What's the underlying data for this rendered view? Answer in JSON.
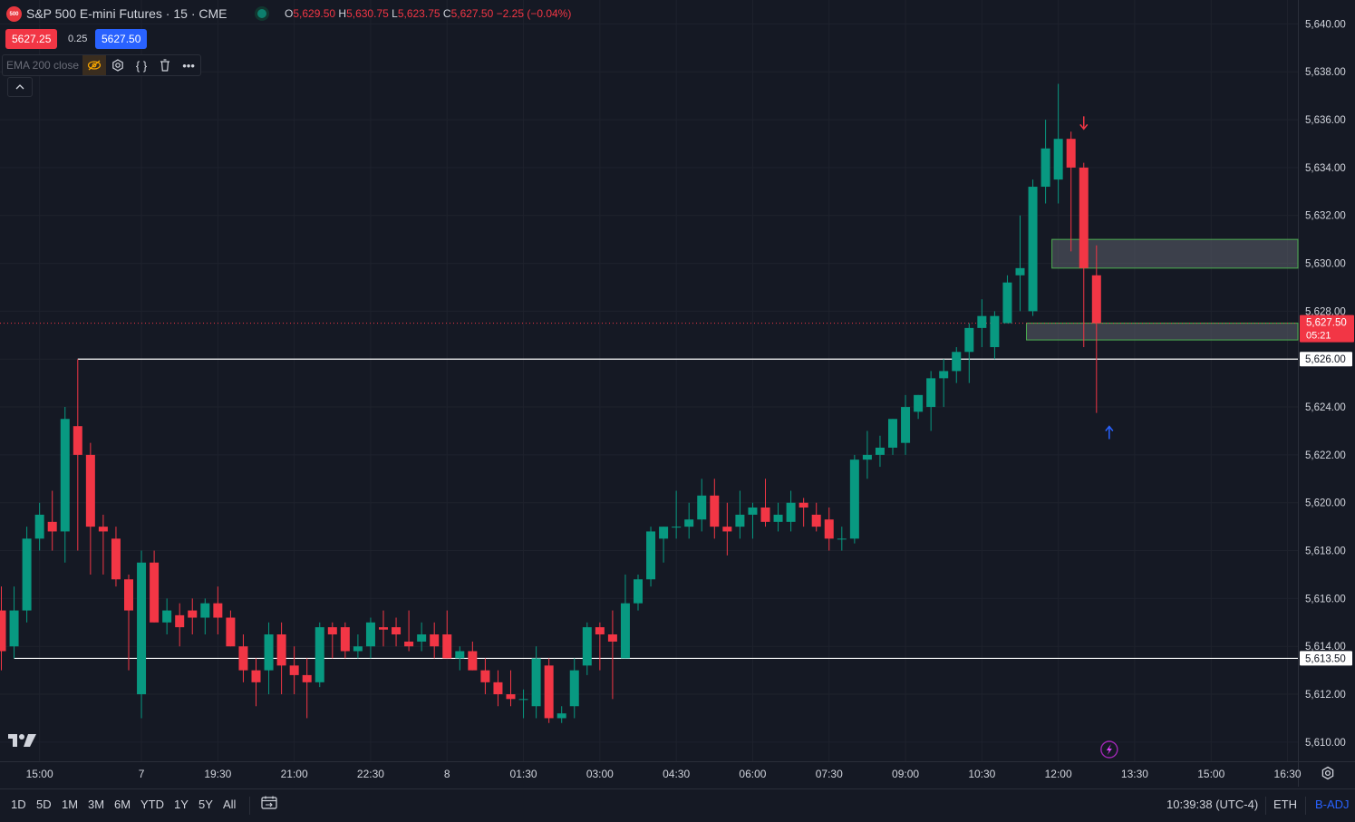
{
  "header": {
    "symbol_badge": "500",
    "title": "S&P 500 E-mini Futures · 15 · CME",
    "ohlc": [
      {
        "k": "O",
        "v": "5,629.50"
      },
      {
        "k": "H",
        "v": "5,630.75"
      },
      {
        "k": "L",
        "v": "5,623.75"
      },
      {
        "k": "C",
        "v": "5,627.50"
      }
    ],
    "change": "−2.25 (−0.04%)",
    "sell_price": "5627.25",
    "spread": "0.25",
    "buy_price": "5627.50"
  },
  "indicator": {
    "label": "EMA 200 close",
    "icons": [
      "eye-off-icon",
      "settings-icon",
      "source-code-icon",
      "trash-icon",
      "more-icon"
    ]
  },
  "colors": {
    "up": "#089981",
    "down": "#f23645",
    "bg": "#151924",
    "grid": "#1e222d",
    "zone_fill": "#5d606b",
    "zone_border": "#4caf50",
    "hline": "#ffffff",
    "buy": "#2962ff"
  },
  "chart_data": {
    "type": "candlestick",
    "timeframe": "15",
    "ylim": [
      5609.2,
      5641.0
    ],
    "y_ticks": [
      "5,610.00",
      "5,612.00",
      "5,614.00",
      "5,616.00",
      "5,618.00",
      "5,620.00",
      "5,622.00",
      "5,624.00",
      "5,626.00",
      "5,628.00",
      "5,630.00",
      "5,632.00",
      "5,634.00",
      "5,636.00",
      "5,638.00",
      "5,640.00"
    ],
    "y_tick_values": [
      5610,
      5612,
      5614,
      5616,
      5618,
      5620,
      5622,
      5624,
      5626,
      5628,
      5630,
      5632,
      5634,
      5636,
      5638,
      5640
    ],
    "x_tick_labels": [
      "15:00",
      "7",
      "19:30",
      "21:00",
      "22:30",
      "8",
      "01:30",
      "03:00",
      "04:30",
      "06:00",
      "07:30",
      "09:00",
      "10:30",
      "12:00",
      "13:30",
      "15:00",
      "16:30"
    ],
    "x_tick_bar_index": [
      3,
      11,
      17,
      23,
      29,
      35,
      41,
      47,
      53,
      59,
      65,
      71,
      77,
      83,
      89,
      95,
      101
    ],
    "candles": [
      [
        5615.5,
        5616.5,
        5613.0,
        5613.8
      ],
      [
        5614.0,
        5616.5,
        5613.5,
        5615.5
      ],
      [
        5615.5,
        5619.0,
        5615.0,
        5618.5
      ],
      [
        5618.5,
        5620.0,
        5618.0,
        5619.5
      ],
      [
        5619.2,
        5620.5,
        5618.0,
        5618.8
      ],
      [
        5618.8,
        5624.0,
        5617.5,
        5623.5
      ],
      [
        5623.2,
        5626.0,
        5618.0,
        5622.0
      ],
      [
        5622.0,
        5622.5,
        5617.0,
        5619.0
      ],
      [
        5619.0,
        5619.5,
        5617.0,
        5618.8
      ],
      [
        5618.5,
        5619.0,
        5616.5,
        5616.8
      ],
      [
        5616.8,
        5617.0,
        5613.0,
        5615.5
      ],
      [
        5612.0,
        5618.0,
        5611.0,
        5617.5
      ],
      [
        5617.5,
        5618.0,
        5615.0,
        5615.0
      ],
      [
        5615.0,
        5616.0,
        5614.5,
        5615.5
      ],
      [
        5615.3,
        5615.8,
        5614.0,
        5614.8
      ],
      [
        5615.5,
        5616.0,
        5614.5,
        5615.2
      ],
      [
        5615.2,
        5616.0,
        5614.5,
        5615.8
      ],
      [
        5615.8,
        5616.5,
        5614.5,
        5615.2
      ],
      [
        5615.2,
        5615.5,
        5614.0,
        5614.0
      ],
      [
        5614.0,
        5614.5,
        5612.5,
        5613.0
      ],
      [
        5613.0,
        5613.5,
        5611.5,
        5612.5
      ],
      [
        5613.0,
        5615.0,
        5612.0,
        5614.5
      ],
      [
        5614.5,
        5615.0,
        5612.0,
        5613.2
      ],
      [
        5613.2,
        5614.0,
        5612.0,
        5612.8
      ],
      [
        5612.8,
        5613.5,
        5611.0,
        5612.5
      ],
      [
        5612.5,
        5615.0,
        5612.3,
        5614.8
      ],
      [
        5614.8,
        5615.0,
        5613.5,
        5614.5
      ],
      [
        5614.8,
        5615.0,
        5613.5,
        5613.8
      ],
      [
        5613.8,
        5614.5,
        5613.5,
        5614.0
      ],
      [
        5614.0,
        5615.2,
        5613.5,
        5615.0
      ],
      [
        5614.8,
        5615.5,
        5614.0,
        5614.7
      ],
      [
        5614.8,
        5615.2,
        5614.0,
        5614.5
      ],
      [
        5614.2,
        5615.5,
        5613.8,
        5614.0
      ],
      [
        5614.2,
        5615.0,
        5613.8,
        5614.5
      ],
      [
        5614.5,
        5615.0,
        5613.5,
        5614.0
      ],
      [
        5614.5,
        5615.5,
        5613.5,
        5613.5
      ],
      [
        5613.5,
        5614.0,
        5613.0,
        5613.8
      ],
      [
        5613.8,
        5614.2,
        5613.0,
        5613.0
      ],
      [
        5613.0,
        5613.5,
        5612.0,
        5612.5
      ],
      [
        5612.5,
        5613.0,
        5611.5,
        5612.0
      ],
      [
        5612.0,
        5613.0,
        5611.5,
        5611.8
      ],
      [
        5611.8,
        5612.2,
        5611.0,
        5611.8
      ],
      [
        5611.5,
        5614.0,
        5611.0,
        5613.5
      ],
      [
        5613.2,
        5613.5,
        5610.8,
        5611.0
      ],
      [
        5611.0,
        5611.5,
        5610.8,
        5611.2
      ],
      [
        5611.5,
        5613.5,
        5611.0,
        5613.0
      ],
      [
        5613.2,
        5615.0,
        5612.8,
        5614.8
      ],
      [
        5614.8,
        5615.0,
        5613.0,
        5614.5
      ],
      [
        5614.5,
        5615.5,
        5611.8,
        5614.2
      ],
      [
        5613.5,
        5617.0,
        5613.5,
        5615.8
      ],
      [
        5615.8,
        5617.0,
        5615.5,
        5616.8
      ],
      [
        5616.8,
        5619.0,
        5616.5,
        5618.8
      ],
      [
        5618.5,
        5619.0,
        5617.5,
        5619.0
      ],
      [
        5619.0,
        5620.5,
        5618.5,
        5619.0
      ],
      [
        5619.0,
        5620.0,
        5618.5,
        5619.3
      ],
      [
        5619.3,
        5621.0,
        5618.8,
        5620.3
      ],
      [
        5620.3,
        5621.0,
        5618.5,
        5619.0
      ],
      [
        5619.0,
        5620.0,
        5617.8,
        5618.8
      ],
      [
        5619.0,
        5620.5,
        5618.5,
        5619.5
      ],
      [
        5619.5,
        5620.0,
        5618.5,
        5619.8
      ],
      [
        5619.8,
        5621.0,
        5619.0,
        5619.2
      ],
      [
        5619.2,
        5620.0,
        5618.8,
        5619.5
      ],
      [
        5619.2,
        5620.5,
        5618.8,
        5620.0
      ],
      [
        5620.0,
        5620.2,
        5619.0,
        5619.8
      ],
      [
        5619.5,
        5620.0,
        5618.8,
        5619.0
      ],
      [
        5619.3,
        5619.8,
        5618.0,
        5618.5
      ],
      [
        5618.5,
        5619.0,
        5618.0,
        5618.5
      ],
      [
        5618.5,
        5622.0,
        5618.3,
        5621.8
      ],
      [
        5621.8,
        5623.0,
        5621.0,
        5622.0
      ],
      [
        5622.0,
        5622.8,
        5621.5,
        5622.3
      ],
      [
        5622.3,
        5623.5,
        5622.0,
        5623.5
      ],
      [
        5622.5,
        5624.5,
        5622.0,
        5624.0
      ],
      [
        5623.8,
        5624.5,
        5623.5,
        5624.5
      ],
      [
        5624.0,
        5625.5,
        5623.0,
        5625.2
      ],
      [
        5625.2,
        5626.0,
        5624.0,
        5625.5
      ],
      [
        5625.5,
        5626.5,
        5625.0,
        5626.3
      ],
      [
        5626.3,
        5627.5,
        5625.0,
        5627.3
      ],
      [
        5627.3,
        5628.5,
        5626.5,
        5627.8
      ],
      [
        5626.5,
        5628.0,
        5626.0,
        5627.8
      ],
      [
        5627.5,
        5629.5,
        5627.5,
        5629.2
      ],
      [
        5629.5,
        5632.0,
        5628.0,
        5629.8
      ],
      [
        5628.0,
        5633.5,
        5627.8,
        5633.2
      ],
      [
        5633.2,
        5636.0,
        5632.5,
        5634.8
      ],
      [
        5633.5,
        5637.5,
        5632.5,
        5635.2
      ],
      [
        5635.2,
        5635.5,
        5630.5,
        5634.0
      ],
      [
        5634.0,
        5634.2,
        5626.5,
        5629.8
      ],
      [
        5629.5,
        5630.75,
        5623.75,
        5627.5
      ]
    ],
    "zones": [
      {
        "y_top": 5631.0,
        "y_bottom": 5629.8,
        "from_bar": 83
      },
      {
        "y_top": 5627.5,
        "y_bottom": 5626.8,
        "from_bar": 81
      }
    ],
    "horizontal_lines": [
      {
        "price": 5626.0,
        "label": "5,626.00",
        "from_bar": 6
      },
      {
        "price": 5613.5,
        "label": "5,613.50",
        "from_bar": 1
      }
    ],
    "current_price": {
      "label": "5,627.50",
      "countdown": "05:21",
      "price": 5627.5
    },
    "signals": [
      {
        "type": "sell-arrow",
        "bar": 85,
        "price": 5635.8
      },
      {
        "type": "buy-arrow",
        "bar": 87,
        "price": 5623.0
      }
    ]
  },
  "bottom_bar": {
    "ranges": [
      "1D",
      "5D",
      "1M",
      "3M",
      "6M",
      "YTD",
      "1Y",
      "5Y",
      "All"
    ],
    "clock": "10:39:38 (UTC-4)",
    "session": "ETH",
    "adjust": "B-ADJ"
  }
}
